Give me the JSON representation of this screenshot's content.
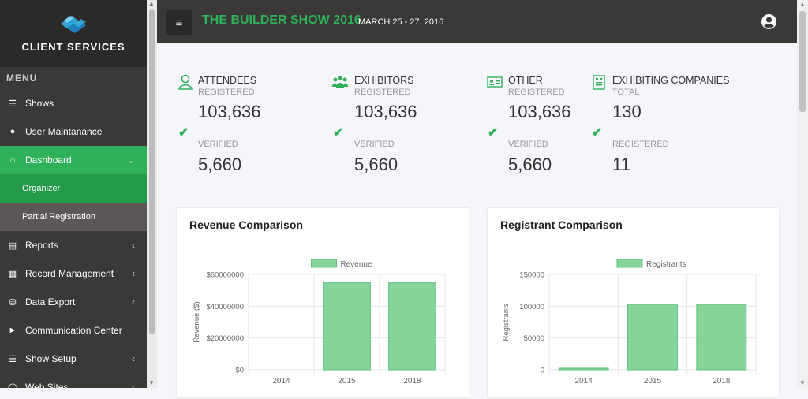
{
  "sidebar": {
    "brand_title": "CLIENT SERVICES",
    "menu_heading": "MENU",
    "items": [
      {
        "label": "Shows",
        "icon": "list-icon"
      },
      {
        "label": "User Maintanance",
        "icon": "user-icon"
      },
      {
        "label": "Dashboard",
        "icon": "home-icon",
        "active": true,
        "chevron": "down"
      },
      {
        "label": "Reports",
        "icon": "bar-chart-icon",
        "chevron": "left"
      },
      {
        "label": "Record Management",
        "icon": "table-icon",
        "chevron": "left"
      },
      {
        "label": "Data Export",
        "icon": "database-icon",
        "chevron": "left"
      },
      {
        "label": "Communication Center",
        "icon": "megaphone-icon"
      },
      {
        "label": "Show Setup",
        "icon": "sitemap-icon",
        "chevron": "left"
      },
      {
        "label": "Web Sites",
        "icon": "globe-icon",
        "chevron": "left"
      }
    ],
    "sub_items": [
      {
        "label": "Organizer"
      },
      {
        "label": "Partial Registration"
      }
    ]
  },
  "header": {
    "show_title": "THE BUILDER SHOW 2016",
    "show_dates": "MARCH 25 - 27, 2016"
  },
  "stats": [
    {
      "icon": "person-icon",
      "title": "ATTENDEES",
      "label1": "REGISTERED",
      "value1": "103,636",
      "label2": "VERIFIED",
      "value2": "5,660"
    },
    {
      "icon": "users-group-icon",
      "title": "EXHIBITORS",
      "label1": "REGISTERED",
      "value1": "103,636",
      "label2": "VERIFIED",
      "value2": "5,660"
    },
    {
      "icon": "id-card-icon",
      "title": "OTHER",
      "label1": "REGISTERED",
      "value1": "103,636",
      "label2": "VERIFIED",
      "value2": "5,660"
    },
    {
      "icon": "building-document-icon",
      "title": "EXHIBITING COMPANIES",
      "label1": "TOTAL",
      "value1": "130",
      "label2": "REGISTERED",
      "value2": "11"
    }
  ],
  "colors": {
    "accent": "#2fb15a",
    "sidebar_bg": "#3a3938",
    "bar_fill": "#86d49b",
    "bar_stroke": "#5cc27a"
  },
  "chart_data": [
    {
      "type": "bar",
      "card_title": "Revenue Comparison",
      "categories": [
        "2014",
        "2015",
        "2018"
      ],
      "series": [
        {
          "name": "Revenue",
          "values": [
            0,
            55000000,
            55000000
          ]
        }
      ],
      "ylabel": "Revenue ($)",
      "ylim": [
        0,
        60000000
      ],
      "yticks": [
        "$60000000",
        "$40000000",
        "$20000000",
        "$0"
      ],
      "ytick_values": [
        60000000,
        40000000,
        20000000,
        0
      ],
      "legend": "top"
    },
    {
      "type": "bar",
      "card_title": "Registrant Comparison",
      "categories": [
        "2014",
        "2015",
        "2018"
      ],
      "series": [
        {
          "name": "Registrants",
          "values": [
            2500,
            103000,
            103000
          ]
        }
      ],
      "ylabel": "Registrants",
      "ylim": [
        0,
        150000
      ],
      "yticks": [
        "150000",
        "100000",
        "50000",
        "0"
      ],
      "ytick_values": [
        150000,
        100000,
        50000,
        0
      ],
      "legend": "top"
    }
  ]
}
